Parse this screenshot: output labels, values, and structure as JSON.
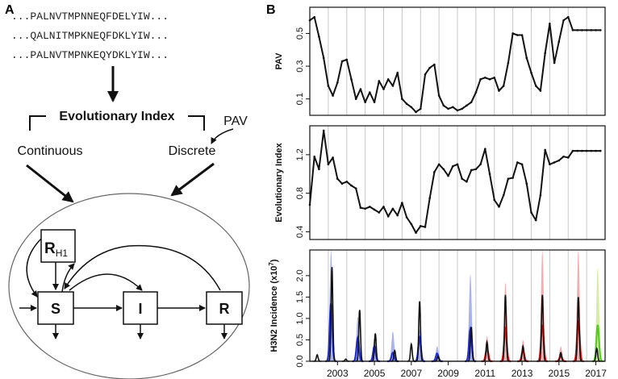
{
  "panel_a": {
    "label": "A",
    "sequences": [
      "...PALNVTMPNNEQFDELYIW...",
      "...QALNITMPKNEQFDKLYIW...",
      "...PALNVTMPNKEQYDKLYIW..."
    ],
    "evolutionary_index": "Evolutionary Index",
    "continuous": "Continuous",
    "discrete": "Discrete",
    "pav": "PAV",
    "model": {
      "r_h1_main": "R",
      "r_h1_sub": "H1",
      "s": "S",
      "i": "I",
      "r": "R"
    }
  },
  "panel_b": {
    "label": "B"
  },
  "chart_data": [
    {
      "type": "line",
      "ylabel": "PAV",
      "ylim": [
        0,
        0.66
      ],
      "yticks": [
        "0.1",
        "0.3",
        "0.5"
      ],
      "ytick_values": [
        0.1,
        0.3,
        0.5
      ],
      "x": [
        2002.0,
        2002.25,
        2002.5,
        2002.75,
        2003.0,
        2003.25,
        2003.5,
        2003.75,
        2004.0,
        2004.25,
        2004.5,
        2004.75,
        2005.0,
        2005.25,
        2005.5,
        2005.75,
        2006.0,
        2006.25,
        2006.5,
        2006.75,
        2007.0,
        2007.25,
        2007.5,
        2007.75,
        2008.0,
        2008.25,
        2008.5,
        2008.75,
        2009.0,
        2009.25,
        2009.5,
        2009.75,
        2010.0,
        2010.25,
        2010.5,
        2010.75,
        2011.0,
        2011.25,
        2011.5,
        2011.75,
        2012.0,
        2012.25,
        2012.5,
        2012.75,
        2013.0,
        2013.25,
        2013.5,
        2013.75,
        2014.0,
        2014.25,
        2014.5,
        2014.75,
        2015.0,
        2015.25,
        2015.5,
        2015.75,
        2016.0,
        2016.25,
        2016.5,
        2016.75,
        2017.0,
        2017.25,
        2017.5,
        2017.75
      ],
      "values": [
        0.58,
        0.6,
        0.48,
        0.35,
        0.18,
        0.12,
        0.2,
        0.33,
        0.34,
        0.22,
        0.1,
        0.16,
        0.08,
        0.14,
        0.08,
        0.21,
        0.16,
        0.22,
        0.18,
        0.26,
        0.1,
        0.07,
        0.05,
        0.02,
        0.04,
        0.25,
        0.29,
        0.31,
        0.12,
        0.06,
        0.04,
        0.05,
        0.03,
        0.04,
        0.06,
        0.08,
        0.14,
        0.22,
        0.23,
        0.22,
        0.23,
        0.15,
        0.18,
        0.32,
        0.5,
        0.49,
        0.49,
        0.35,
        0.26,
        0.18,
        0.15,
        0.38,
        0.56,
        0.32,
        0.45,
        0.58,
        0.6,
        0.52,
        0.52,
        0.52,
        0.52,
        0.52,
        0.52,
        0.52
      ]
    },
    {
      "type": "line",
      "ylabel": "Evolutionary Index",
      "ylim": [
        0.32,
        1.5
      ],
      "yticks": [
        "0.4",
        "0.8",
        "1.2"
      ],
      "ytick_values": [
        0.4,
        0.8,
        1.2
      ],
      "x": [
        2002.0,
        2002.25,
        2002.5,
        2002.75,
        2003.0,
        2003.25,
        2003.5,
        2003.75,
        2004.0,
        2004.25,
        2004.5,
        2004.75,
        2005.0,
        2005.25,
        2005.5,
        2005.75,
        2006.0,
        2006.25,
        2006.5,
        2006.75,
        2007.0,
        2007.25,
        2007.5,
        2007.75,
        2008.0,
        2008.25,
        2008.5,
        2008.75,
        2009.0,
        2009.25,
        2009.5,
        2009.75,
        2010.0,
        2010.25,
        2010.5,
        2010.75,
        2011.0,
        2011.25,
        2011.5,
        2011.75,
        2012.0,
        2012.25,
        2012.5,
        2012.75,
        2013.0,
        2013.25,
        2013.5,
        2013.75,
        2014.0,
        2014.25,
        2014.5,
        2014.75,
        2015.0,
        2015.25,
        2015.5,
        2015.75,
        2016.0,
        2016.25,
        2016.5,
        2016.75,
        2017.0,
        2017.25,
        2017.5,
        2017.75
      ],
      "values": [
        0.68,
        1.18,
        1.05,
        1.45,
        1.1,
        1.17,
        0.95,
        0.9,
        0.92,
        0.88,
        0.85,
        0.65,
        0.64,
        0.66,
        0.63,
        0.6,
        0.66,
        0.56,
        0.64,
        0.57,
        0.7,
        0.55,
        0.48,
        0.39,
        0.46,
        0.45,
        0.75,
        1.02,
        1.1,
        1.05,
        0.98,
        1.08,
        1.1,
        0.95,
        0.92,
        1.04,
        1.05,
        1.1,
        1.26,
        1.0,
        0.73,
        0.66,
        0.78,
        0.95,
        0.96,
        1.12,
        1.1,
        0.9,
        0.6,
        0.52,
        0.78,
        1.25,
        1.1,
        1.12,
        1.14,
        1.18,
        1.17,
        1.24,
        1.24,
        1.24,
        1.24,
        1.24,
        1.24,
        1.24
      ]
    },
    {
      "type": "line",
      "ylabel": "H3N2 Incidence (x10^7)",
      "ylabel_main": "H3N2 Incidence (x10",
      "ylabel_sup": "7",
      "ylabel_end": ")",
      "ylim": [
        0,
        2.6
      ],
      "yticks": [
        "0.0",
        "0.5",
        "1.0",
        "1.5",
        "2.0"
      ],
      "ytick_values": [
        0.0,
        0.5,
        1.0,
        1.5,
        2.0
      ],
      "xticks": [
        "2003",
        "2005",
        "2007",
        "2009",
        "2011",
        "2013",
        "2015",
        "2017"
      ],
      "xtick_values": [
        2003,
        2005,
        2007,
        2009,
        2011,
        2013,
        2015,
        2017
      ],
      "xlim": [
        2002.0,
        2018.0
      ],
      "observed_peaks": [
        [
          2002.4,
          0.15
        ],
        [
          2003.2,
          2.2
        ],
        [
          2003.95,
          0.05
        ],
        [
          2004.7,
          1.2
        ],
        [
          2005.55,
          0.65
        ],
        [
          2006.6,
          0.25
        ],
        [
          2007.5,
          0.4
        ],
        [
          2007.95,
          1.4
        ],
        [
          2008.95,
          0.12
        ],
        [
          2010.75,
          0.8
        ],
        [
          2011.6,
          0.45
        ],
        [
          2012.6,
          1.55
        ],
        [
          2013.55,
          0.35
        ],
        [
          2014.6,
          1.55
        ],
        [
          2015.6,
          0.2
        ],
        [
          2016.55,
          1.5
        ],
        [
          2017.55,
          0.3
        ]
      ],
      "model_seasons": [
        {
          "t": 2003.15,
          "peak": 1.35,
          "band": 2.6,
          "color": "#1f2ed6"
        },
        {
          "t": 2004.6,
          "peak": 0.55,
          "band": 1.05,
          "color": "#1f2ed6"
        },
        {
          "t": 2005.5,
          "peak": 0.35,
          "band": 0.55,
          "color": "#1f2ed6"
        },
        {
          "t": 2006.5,
          "peak": 0.2,
          "band": 0.7,
          "color": "#1f2ed6"
        },
        {
          "t": 2007.95,
          "peak": 0.55,
          "band": 0.75,
          "color": "#1f2ed6"
        },
        {
          "t": 2008.9,
          "peak": 0.18,
          "band": 0.35,
          "color": "#1f2ed6"
        },
        {
          "t": 2010.7,
          "peak": 0.75,
          "band": 2.05,
          "color": "#1f2ed6"
        },
        {
          "t": 2011.6,
          "peak": 0.3,
          "band": 0.6,
          "color": "#e01818"
        },
        {
          "t": 2012.6,
          "peak": 0.75,
          "band": 1.85,
          "color": "#e01818"
        },
        {
          "t": 2013.55,
          "peak": 0.25,
          "band": 0.5,
          "color": "#e01818"
        },
        {
          "t": 2014.6,
          "peak": 0.85,
          "band": 2.6,
          "color": "#e01818"
        },
        {
          "t": 2015.6,
          "peak": 0.12,
          "band": 0.35,
          "color": "#e01818"
        },
        {
          "t": 2016.55,
          "peak": 0.95,
          "band": 2.6,
          "color": "#e01818"
        },
        {
          "t": 2017.6,
          "peak": 0.85,
          "band": 2.2,
          "color": "#55cc22"
        }
      ]
    }
  ],
  "colors": {
    "h1_blue": "#1f2ed6",
    "h1_red": "#e01818",
    "h1_green": "#55cc22",
    "band_blue": "#9aa4ee",
    "band_red": "#f1a0a0",
    "band_green": "#cfe990"
  }
}
